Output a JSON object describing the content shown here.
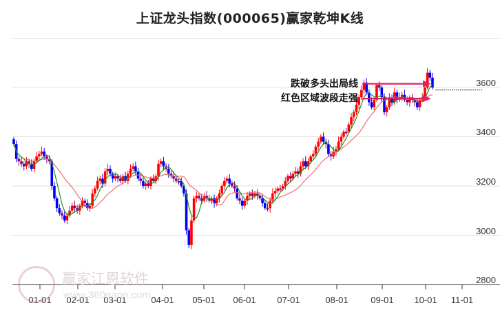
{
  "title": "上证龙头指数(000065)赢家乾坤K线",
  "watermark": {
    "text": "赢家江恩软件",
    "url": "www.360gann.com",
    "seal": [
      "江",
      "赢",
      "恩",
      "家"
    ]
  },
  "annotations": [
    {
      "label": "跌破多头出局线",
      "y_price": 3615
    },
    {
      "label": "红色区域波段走强",
      "y_price": 3555
    }
  ],
  "colors": {
    "up": "#ff0000",
    "down": "#0000ff",
    "neutral": "#800080",
    "ma_short": "#228b22",
    "ma_long": "#f06060",
    "arrow": "#e0206a",
    "grid": "#e0e0e0"
  },
  "chart_data": {
    "type": "candlestick",
    "title": "上证龙头指数(000065)赢家乾坤K线",
    "xlabel": "",
    "ylabel": "",
    "ylim": [
      2800,
      3800
    ],
    "y_ticks": [
      2800,
      3000,
      3200,
      3400,
      3600
    ],
    "x_ticks": [
      "01-01",
      "02-01",
      "03-01",
      "04-01",
      "05-01",
      "06-01",
      "07-01",
      "08-01",
      "09-01",
      "10-01",
      "11-01"
    ],
    "grid": true,
    "last_price_line": 3590,
    "series": [
      {
        "name": "close",
        "values": [
          3370,
          3310,
          3300,
          3290,
          3280,
          3300,
          3290,
          3270,
          3300,
          3320,
          3330,
          3340,
          3320,
          3310,
          3300,
          3200,
          3150,
          3110,
          3090,
          3080,
          3060,
          3080,
          3100,
          3120,
          3110,
          3100,
          3120,
          3140,
          3130,
          3110,
          3120,
          3170,
          3190,
          3220,
          3230,
          3210,
          3260,
          3270,
          3250,
          3230,
          3240,
          3230,
          3220,
          3240,
          3220,
          3250,
          3270,
          3280,
          3260,
          3230,
          3220,
          3200,
          3210,
          3200,
          3230,
          3220,
          3240,
          3290,
          3300,
          3280,
          3270,
          3250,
          3240,
          3230,
          3220,
          3220,
          3200,
          3170,
          3020,
          2960,
          3060,
          3150,
          3160,
          3150,
          3140,
          3160,
          3150,
          3140,
          3150,
          3130,
          3150,
          3170,
          3200,
          3220,
          3230,
          3210,
          3200,
          3190,
          3150,
          3140,
          3120,
          3140,
          3160,
          3170,
          3160,
          3170,
          3160,
          3150,
          3130,
          3110,
          3110,
          3140,
          3170,
          3180,
          3190,
          3190,
          3200,
          3220,
          3240,
          3230,
          3250,
          3260,
          3250,
          3280,
          3300,
          3280,
          3300,
          3320,
          3330,
          3360,
          3380,
          3400,
          3380,
          3370,
          3330,
          3320,
          3340,
          3350,
          3380,
          3400,
          3420,
          3420,
          3450,
          3480,
          3500,
          3530,
          3560,
          3590,
          3620,
          3580,
          3540,
          3520,
          3550,
          3610,
          3600,
          3560,
          3500,
          3520,
          3560,
          3540,
          3580,
          3550,
          3560,
          3570,
          3550,
          3540,
          3560,
          3550,
          3540,
          3520,
          3550,
          3560,
          3600,
          3660,
          3640,
          3600
        ]
      },
      {
        "name": "ma_short",
        "note": "green moving average"
      },
      {
        "name": "ma_long",
        "note": "red moving average"
      }
    ]
  }
}
